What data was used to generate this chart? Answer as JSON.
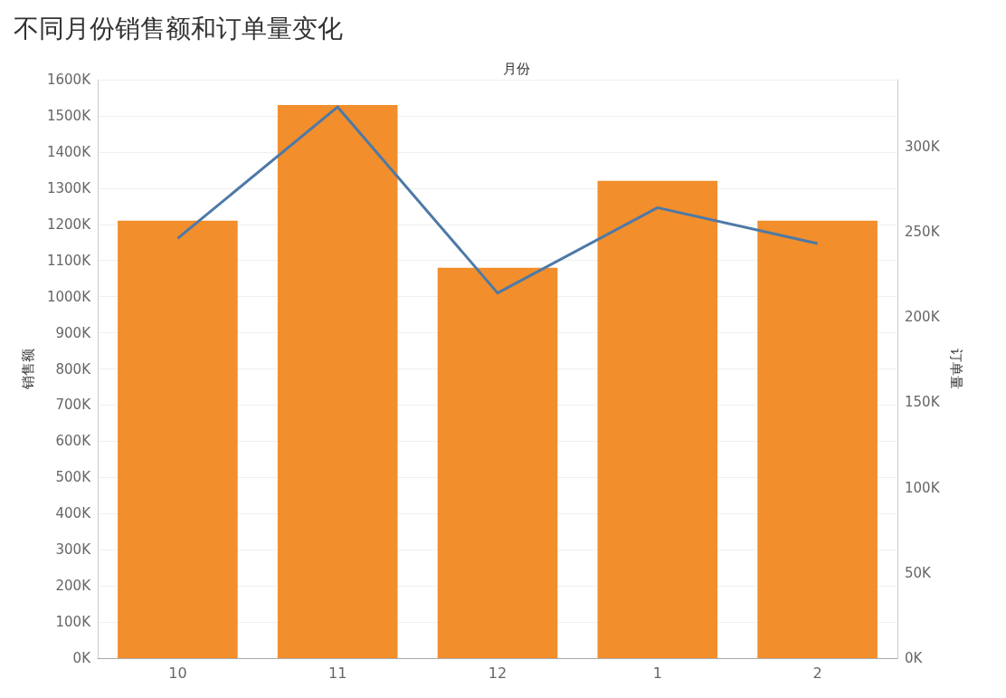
{
  "chart_data": {
    "type": "bar",
    "title": "不同月份销售额和订单量变化",
    "xlabel": "月份",
    "ylabel": "销售额",
    "y2label": "订单量",
    "categories": [
      "10",
      "11",
      "12",
      "1",
      "2"
    ],
    "series": [
      {
        "color": "#f28e2b",
        "values": [
          1210000,
          1530000,
          1080000,
          1320000,
          1210000
        ]
      },
      {
        "type": "line",
        "axis": "y2",
        "color": "#4e79a7",
        "values": [
          246000,
          323000,
          214000,
          264000,
          243000
        ]
      }
    ],
    "ylim": [
      0,
      1600000
    ],
    "yticks": [
      {
        "value": 0,
        "label": "0K"
      },
      {
        "value": 100000,
        "label": "100K"
      },
      {
        "value": 200000,
        "label": "200K"
      },
      {
        "value": 300000,
        "label": "300K"
      },
      {
        "value": 400000,
        "label": "400K"
      },
      {
        "value": 500000,
        "label": "500K"
      },
      {
        "value": 600000,
        "label": "600K"
      },
      {
        "value": 700000,
        "label": "700K"
      },
      {
        "value": 800000,
        "label": "800K"
      },
      {
        "value": 900000,
        "label": "900K"
      },
      {
        "value": 1000000,
        "label": "1000K"
      },
      {
        "value": 1100000,
        "label": "1100K"
      },
      {
        "value": 1200000,
        "label": "1200K"
      },
      {
        "value": 1300000,
        "label": "1300K"
      },
      {
        "value": 1400000,
        "label": "1400K"
      },
      {
        "value": 1500000,
        "label": "1500K"
      },
      {
        "value": 1600000,
        "label": "1600K"
      }
    ],
    "y2lim": [
      0,
      339000
    ],
    "y2ticks": [
      {
        "value": 0,
        "label": "0K"
      },
      {
        "value": 50000,
        "label": "50K"
      },
      {
        "value": 100000,
        "label": "100K"
      },
      {
        "value": 150000,
        "label": "150K"
      },
      {
        "value": 200000,
        "label": "200K"
      },
      {
        "value": 250000,
        "label": "250K"
      },
      {
        "value": 300000,
        "label": "300K"
      }
    ],
    "grid": "y",
    "marker": "none",
    "line_style": "solid"
  }
}
